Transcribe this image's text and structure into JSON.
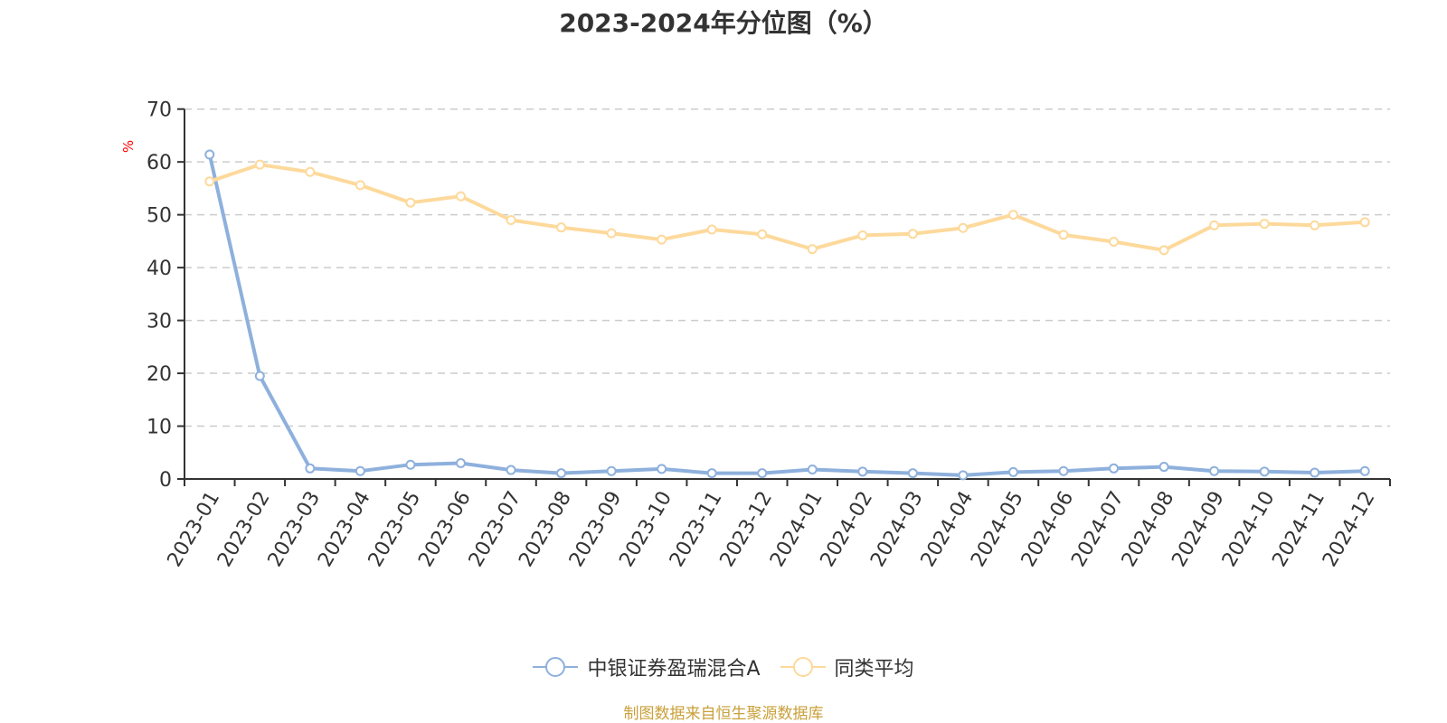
{
  "title": "2023-2024年分位图（%）",
  "footer": "制图数据来自恒生聚源数据库",
  "colors": {
    "series_fund": "#8eb0dc",
    "series_avg": "#fdd99b",
    "grid": "#cccccc",
    "axis": "#333333",
    "ylabel": "#ff0000",
    "footer": "#c9a03a"
  },
  "legend": [
    {
      "name": "中银证券盈瑞混合A",
      "icon": "circle-line-icon",
      "color": "#8eb0dc"
    },
    {
      "name": "同类平均",
      "icon": "circle-line-icon",
      "color": "#fdd99b"
    }
  ],
  "chart_data": {
    "type": "line",
    "title": "2023-2024年分位图（%）",
    "xlabel": "",
    "ylabel": "%",
    "ylim": [
      0,
      70
    ],
    "yticks": [
      0,
      10,
      20,
      30,
      40,
      50,
      60,
      70
    ],
    "grid": true,
    "legend_position": "bottom",
    "categories": [
      "2023-01",
      "2023-02",
      "2023-03",
      "2023-04",
      "2023-05",
      "2023-06",
      "2023-07",
      "2023-08",
      "2023-09",
      "2023-10",
      "2023-11",
      "2023-12",
      "2024-01",
      "2024-02",
      "2024-03",
      "2024-04",
      "2024-05",
      "2024-06",
      "2024-07",
      "2024-08",
      "2024-09",
      "2024-10",
      "2024-11",
      "2024-12"
    ],
    "series": [
      {
        "name": "中银证券盈瑞混合A",
        "color": "#8eb0dc",
        "values": [
          61.4,
          19.5,
          2.0,
          1.5,
          2.7,
          3.0,
          1.7,
          1.1,
          1.5,
          1.9,
          1.1,
          1.1,
          1.8,
          1.4,
          1.1,
          0.7,
          1.3,
          1.5,
          2.0,
          2.3,
          1.5,
          1.4,
          1.2,
          1.5
        ]
      },
      {
        "name": "同类平均",
        "color": "#fdd99b",
        "values": [
          56.3,
          59.5,
          58.1,
          55.6,
          52.3,
          53.5,
          49.0,
          47.6,
          46.5,
          45.3,
          47.2,
          46.3,
          43.5,
          46.1,
          46.4,
          47.5,
          50.0,
          46.2,
          44.9,
          43.3,
          48.0,
          48.3,
          48.0,
          48.6
        ]
      }
    ]
  }
}
